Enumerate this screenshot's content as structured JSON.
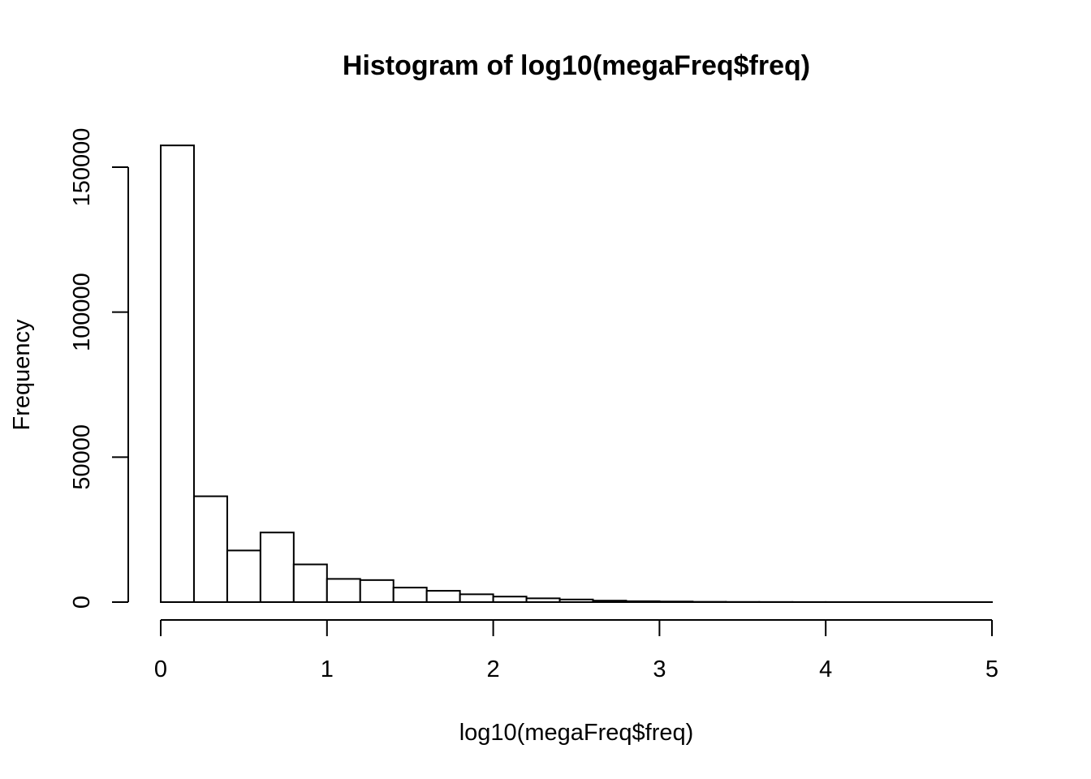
{
  "chart_data": {
    "type": "bar",
    "title": "Histogram of log10(megaFreq$freq)",
    "xlabel": "log10(megaFreq$freq)",
    "ylabel": "Frequency",
    "xlim": [
      0,
      5
    ],
    "ylim": [
      0,
      150000
    ],
    "xticks": [
      "0",
      "1",
      "2",
      "3",
      "4",
      "5"
    ],
    "yticks": [
      "0",
      "50000",
      "100000",
      "150000"
    ],
    "bin_width": 0.2,
    "bins": [
      {
        "x0": 0.0,
        "x1": 0.2,
        "count": 157500
      },
      {
        "x0": 0.2,
        "x1": 0.4,
        "count": 36500
      },
      {
        "x0": 0.4,
        "x1": 0.6,
        "count": 17800
      },
      {
        "x0": 0.6,
        "x1": 0.8,
        "count": 24000
      },
      {
        "x0": 0.8,
        "x1": 1.0,
        "count": 13000
      },
      {
        "x0": 1.0,
        "x1": 1.2,
        "count": 8000
      },
      {
        "x0": 1.2,
        "x1": 1.4,
        "count": 7600
      },
      {
        "x0": 1.4,
        "x1": 1.6,
        "count": 5000
      },
      {
        "x0": 1.6,
        "x1": 1.8,
        "count": 3900
      },
      {
        "x0": 1.8,
        "x1": 2.0,
        "count": 2700
      },
      {
        "x0": 2.0,
        "x1": 2.2,
        "count": 1900
      },
      {
        "x0": 2.2,
        "x1": 2.4,
        "count": 1300
      },
      {
        "x0": 2.4,
        "x1": 2.6,
        "count": 900
      },
      {
        "x0": 2.6,
        "x1": 2.8,
        "count": 500
      },
      {
        "x0": 2.8,
        "x1": 3.0,
        "count": 300
      },
      {
        "x0": 3.0,
        "x1": 3.2,
        "count": 200
      },
      {
        "x0": 3.2,
        "x1": 3.4,
        "count": 100
      },
      {
        "x0": 3.4,
        "x1": 3.6,
        "count": 60
      },
      {
        "x0": 3.6,
        "x1": 3.8,
        "count": 40
      },
      {
        "x0": 3.8,
        "x1": 4.0,
        "count": 25
      },
      {
        "x0": 4.0,
        "x1": 4.2,
        "count": 15
      },
      {
        "x0": 4.2,
        "x1": 4.4,
        "count": 10
      },
      {
        "x0": 4.4,
        "x1": 4.6,
        "count": 6
      },
      {
        "x0": 4.6,
        "x1": 4.8,
        "count": 4
      },
      {
        "x0": 4.8,
        "x1": 5.0,
        "count": 2
      }
    ],
    "grid": false,
    "legend": "none"
  }
}
